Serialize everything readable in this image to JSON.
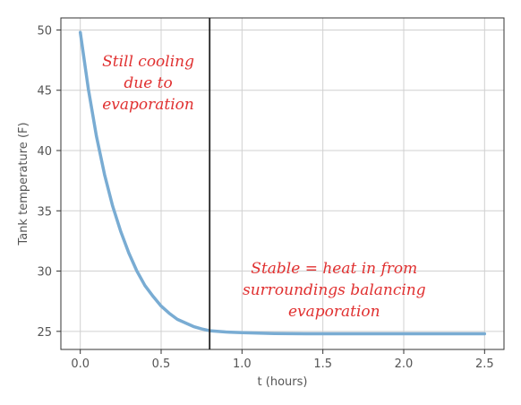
{
  "chart_data": {
    "type": "line",
    "title": "",
    "xlabel": "t (hours)",
    "ylabel": "Tank temperature (F)",
    "xlim": [
      -0.12,
      2.62
    ],
    "ylim": [
      23.5,
      51.0
    ],
    "xticks": [
      0.0,
      0.5,
      1.0,
      1.5,
      2.0,
      2.5
    ],
    "xtick_labels": [
      "0.0",
      "0.5",
      "1.0",
      "1.5",
      "2.0",
      "2.5"
    ],
    "yticks": [
      25,
      30,
      35,
      40,
      45,
      50
    ],
    "ytick_labels": [
      "25",
      "30",
      "35",
      "40",
      "45",
      "50"
    ],
    "grid": true,
    "series": [
      {
        "color": "#79acd3",
        "x": [
          0.0,
          0.05,
          0.1,
          0.15,
          0.2,
          0.25,
          0.3,
          0.35,
          0.4,
          0.45,
          0.5,
          0.55,
          0.6,
          0.65,
          0.7,
          0.75,
          0.8,
          0.9,
          1.0,
          1.1,
          1.2,
          1.4,
          1.6,
          1.8,
          2.0,
          2.2,
          2.5
        ],
        "y": [
          49.8,
          45.1,
          41.2,
          38.0,
          35.4,
          33.3,
          31.5,
          30.0,
          28.8,
          27.9,
          27.1,
          26.5,
          26.0,
          25.7,
          25.4,
          25.2,
          25.05,
          24.95,
          24.9,
          24.85,
          24.82,
          24.8,
          24.8,
          24.8,
          24.8,
          24.8,
          24.8
        ]
      }
    ],
    "vline": {
      "x": 0.8,
      "color": "#222222"
    },
    "annotations": [
      {
        "lines": [
          "Still cooling",
          "due to",
          "evaporation"
        ],
        "x": 0.42,
        "y": 47.0,
        "color": "#e03030"
      },
      {
        "lines": [
          "Stable = heat in from",
          "surroundings  balancing",
          "evaporation"
        ],
        "x": 1.57,
        "y": 29.8,
        "color": "#e03030"
      }
    ]
  }
}
